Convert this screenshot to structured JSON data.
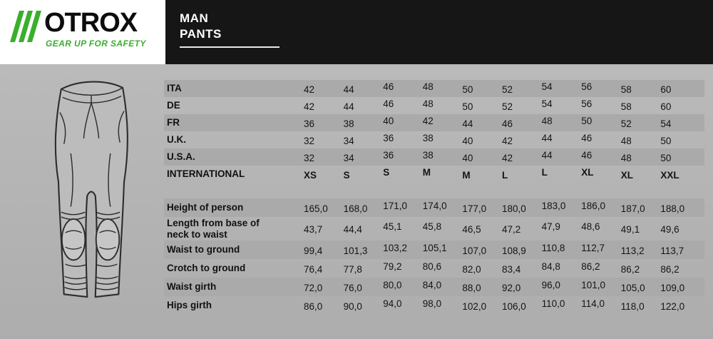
{
  "header": {
    "brand": "OTROX",
    "tagline": "GEAR UP FOR SAFETY",
    "title_line1": "MAN",
    "title_line2": "PANTS"
  },
  "colors": {
    "green": "#3aaf2c",
    "header_black": "#161616",
    "bg": "#b3b3b3",
    "row_dark": "#aaaaaa"
  },
  "illustration": {
    "name": "man-pants-line-drawing"
  },
  "size_table": {
    "rows": [
      {
        "label": "ITA",
        "values": [
          "42",
          "44",
          "46",
          "48",
          "50",
          "52",
          "54",
          "56",
          "58",
          "60"
        ]
      },
      {
        "label": "DE",
        "values": [
          "42",
          "44",
          "46",
          "48",
          "50",
          "52",
          "54",
          "56",
          "58",
          "60"
        ]
      },
      {
        "label": "FR",
        "values": [
          "36",
          "38",
          "40",
          "42",
          "44",
          "46",
          "48",
          "50",
          "52",
          "54"
        ]
      },
      {
        "label": "U.K.",
        "values": [
          "32",
          "34",
          "36",
          "38",
          "40",
          "42",
          "44",
          "46",
          "48",
          "50"
        ]
      },
      {
        "label": "U.S.A.",
        "values": [
          "32",
          "34",
          "36",
          "38",
          "40",
          "42",
          "44",
          "46",
          "48",
          "50"
        ]
      },
      {
        "label": "INTERNATIONAL",
        "values": [
          "XS",
          "S",
          "S",
          "M",
          "M",
          "L",
          "L",
          "XL",
          "XL",
          "XXL"
        ],
        "bold": true
      }
    ]
  },
  "measure_table": {
    "rows": [
      {
        "label": "Height of person",
        "values": [
          "165,0",
          "168,0",
          "171,0",
          "174,0",
          "177,0",
          "180,0",
          "183,0",
          "186,0",
          "187,0",
          "188,0"
        ]
      },
      {
        "label": "Length from base of neck to waist",
        "values": [
          "43,7",
          "44,4",
          "45,1",
          "45,8",
          "46,5",
          "47,2",
          "47,9",
          "48,6",
          "49,1",
          "49,6"
        ]
      },
      {
        "label": "Waist to ground",
        "values": [
          "99,4",
          "101,3",
          "103,2",
          "105,1",
          "107,0",
          "108,9",
          "110,8",
          "112,7",
          "113,2",
          "113,7"
        ]
      },
      {
        "label": "Crotch to ground",
        "values": [
          "76,4",
          "77,8",
          "79,2",
          "80,6",
          "82,0",
          "83,4",
          "84,8",
          "86,2",
          "86,2",
          "86,2"
        ]
      },
      {
        "label": "Waist girth",
        "values": [
          "72,0",
          "76,0",
          "80,0",
          "84,0",
          "88,0",
          "92,0",
          "96,0",
          "101,0",
          "105,0",
          "109,0"
        ]
      },
      {
        "label": "Hips girth",
        "values": [
          "86,0",
          "90,0",
          "94,0",
          "98,0",
          "102,0",
          "106,0",
          "110,0",
          "114,0",
          "118,0",
          "122,0"
        ]
      }
    ]
  }
}
